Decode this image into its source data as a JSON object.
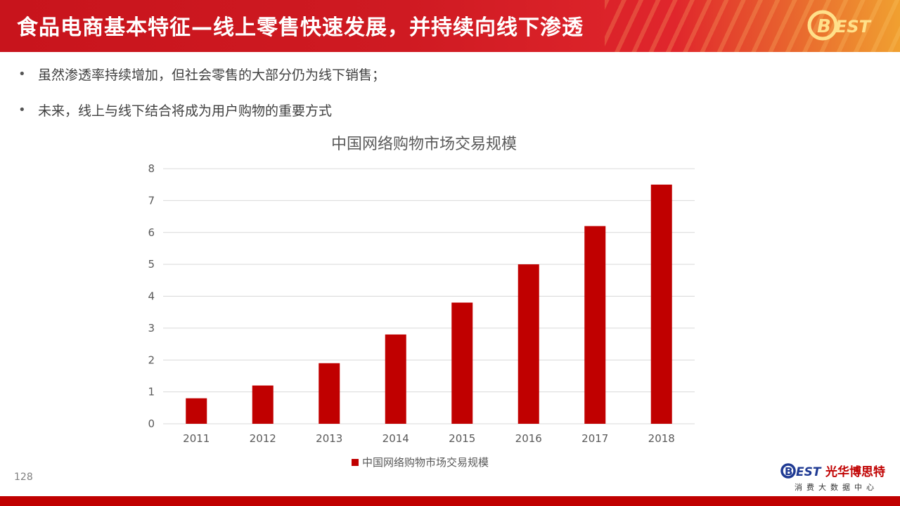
{
  "header": {
    "title": "食品电商基本特征—线上零售快速发展，并持续向线下渗透",
    "logo_text": "BEST"
  },
  "bullets": [
    "虽然渗透率持续增加，但社会零售的大部分仍为线下销售；",
    "未来，线上与线下结合将成为用户购物的重要方式"
  ],
  "colors": {
    "accent": "#c00000",
    "header_red": "#c8141c",
    "text": "#404040",
    "grid": "#d9d9d9"
  },
  "chart_data": {
    "type": "bar",
    "title": "中国网络购物市场交易规模",
    "categories": [
      "2011",
      "2012",
      "2013",
      "2014",
      "2015",
      "2016",
      "2017",
      "2018"
    ],
    "series": [
      {
        "name": "中国网络购物市场交易规模",
        "values": [
          0.8,
          1.2,
          1.9,
          2.8,
          3.8,
          5.0,
          6.2,
          7.5
        ],
        "color": "#c00000"
      }
    ],
    "yticks": [
      "0",
      "1",
      "2",
      "3",
      "4",
      "5",
      "6",
      "7",
      "8"
    ],
    "ylim": [
      0,
      8
    ],
    "grid": true,
    "legend_position": "bottom"
  },
  "footer": {
    "page_number": "128",
    "brand_logo": "BEST",
    "brand_name": "光华博思特",
    "brand_sub": "消费大数据中心"
  }
}
